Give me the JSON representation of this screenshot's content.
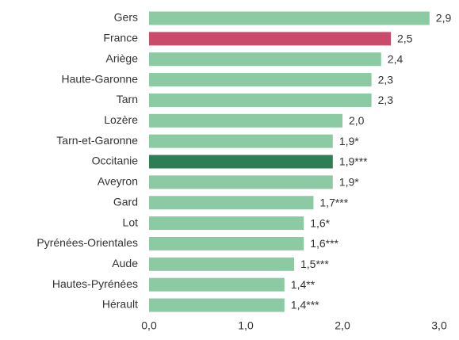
{
  "chart_data": {
    "type": "barh",
    "categories": [
      "Gers",
      "France",
      "Ariège",
      "Haute-Garonne",
      "Tarn",
      "Lozère",
      "Tarn-et-Garonne",
      "Occitanie",
      "Aveyron",
      "Gard",
      "Lot",
      "Pyrénées-Orientales",
      "Aude",
      "Hautes-Pyrénées",
      "Hérault"
    ],
    "values": [
      2.9,
      2.5,
      2.4,
      2.3,
      2.3,
      2.0,
      1.9,
      1.9,
      1.9,
      1.7,
      1.6,
      1.6,
      1.5,
      1.4,
      1.4
    ],
    "value_labels": [
      "2,9",
      "2,5",
      "2,4",
      "2,3",
      "2,3",
      "2,0",
      "1,9*",
      "1,9***",
      "1,9*",
      "1,7***",
      "1,6*",
      "1,6***",
      "1,5***",
      "1,4**",
      "1,4***"
    ],
    "colors": [
      "#8ccaa4",
      "#c94a6b",
      "#8ccaa4",
      "#8ccaa4",
      "#8ccaa4",
      "#8ccaa4",
      "#8ccaa4",
      "#2e7d55",
      "#8ccaa4",
      "#8ccaa4",
      "#8ccaa4",
      "#8ccaa4",
      "#8ccaa4",
      "#8ccaa4",
      "#8ccaa4"
    ],
    "xlim": [
      0,
      3
    ],
    "xticks": [
      {
        "value": 0,
        "label": "0,0"
      },
      {
        "value": 1,
        "label": "1,0"
      },
      {
        "value": 2,
        "label": "2,0"
      },
      {
        "value": 3,
        "label": "3,0"
      }
    ],
    "grid": false
  }
}
